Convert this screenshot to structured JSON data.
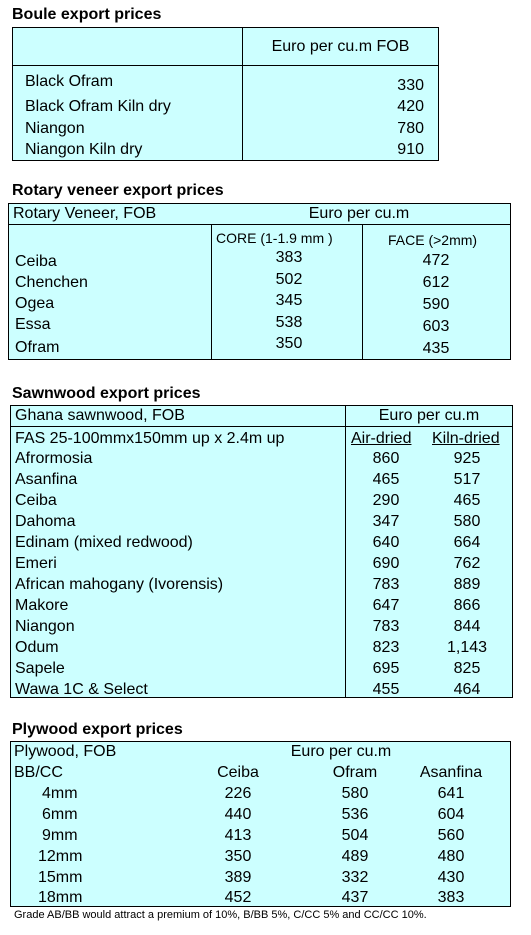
{
  "boule": {
    "title": "Boule export prices",
    "header": "Euro per cu.m FOB",
    "rows": [
      {
        "name": "Black Ofram",
        "price": "330"
      },
      {
        "name": "Black Ofram  Kiln dry",
        "price": "420"
      },
      {
        "name": "Niangon",
        "price": "780"
      },
      {
        "name": "Niangon Kiln dry",
        "price": "910"
      }
    ]
  },
  "rotary": {
    "title": "Rotary veneer export prices",
    "header_left": "Rotary Veneer,  FOB",
    "header_right": "Euro  per cu.m",
    "col_core": "CORE (1-1.9 mm )",
    "col_face": "FACE (>2mm)",
    "rows": [
      {
        "name": "Ceiba",
        "core": "383",
        "face": "472"
      },
      {
        "name": "Chenchen",
        "core": "502",
        "face": "612"
      },
      {
        "name": "Ogea",
        "core": "345",
        "face": "590"
      },
      {
        "name": "Essa",
        "core": "538",
        "face": "603"
      },
      {
        "name": "Ofram",
        "core": "350",
        "face": "435"
      }
    ]
  },
  "sawnwood": {
    "title": "Sawnwood export prices",
    "header_left": "Ghana sawnwood, FOB",
    "header_right": "Euro per cu.m",
    "spec": "FAS 25-100mmx150mm up x 2.4m up",
    "col_air": "Air-dried",
    "col_kiln": "Kiln-dried",
    "rows": [
      {
        "name": "Afrormosia",
        "air": "860",
        "kiln": "925"
      },
      {
        "name": "Asanfina",
        "air": "465",
        "kiln": "517"
      },
      {
        "name": "Ceiba",
        "air": "290",
        "kiln": "465"
      },
      {
        "name": "Dahoma",
        "air": "347",
        "kiln": "580"
      },
      {
        "name": "Edinam (mixed redwood)",
        "air": "640",
        "kiln": "664"
      },
      {
        "name": "Emeri",
        "air": "690",
        "kiln": "762"
      },
      {
        "name": "African mahogany (Ivorensis)",
        "air": "783",
        "kiln": "889"
      },
      {
        "name": "Makore",
        "air": "647",
        "kiln": "866"
      },
      {
        "name": "Niangon",
        "air": "783",
        "kiln": "844"
      },
      {
        "name": "Odum",
        "air": "823",
        "kiln": "1,143"
      },
      {
        "name": "Sapele",
        "air": "695",
        "kiln": "825"
      },
      {
        "name": "Wawa 1C & Select",
        "air": "455",
        "kiln": "464"
      }
    ]
  },
  "plywood": {
    "title": "Plywood export prices",
    "header_left": "Plywood, FOB",
    "header_right": "Euro per cu.m",
    "grade": "BB/CC",
    "col_ceiba": "Ceiba",
    "col_ofram": "Ofram",
    "col_asanfina": "Asanfina",
    "rows": [
      {
        "size": "4mm",
        "ceiba": "226",
        "ofram": "580",
        "asanfina": "641"
      },
      {
        "size": "6mm",
        "ceiba": "440",
        "ofram": "536",
        "asanfina": "604"
      },
      {
        "size": "9mm",
        "ceiba": "413",
        "ofram": "504",
        "asanfina": "560"
      },
      {
        "size": "12mm",
        "ceiba": "350",
        "ofram": "489",
        "asanfina": "480"
      },
      {
        "size": "15mm",
        "ceiba": "389",
        "ofram": "332",
        "asanfina": "430"
      },
      {
        "size": "18mm",
        "ceiba": "452",
        "ofram": "437",
        "asanfina": "383"
      }
    ],
    "note": "Grade AB/BB would attract a premium of 10%, B/BB 5%, C/CC 5% and CC/CC 10%."
  },
  "colors": {
    "table_bg": "#ccffff",
    "border": "#000000"
  }
}
